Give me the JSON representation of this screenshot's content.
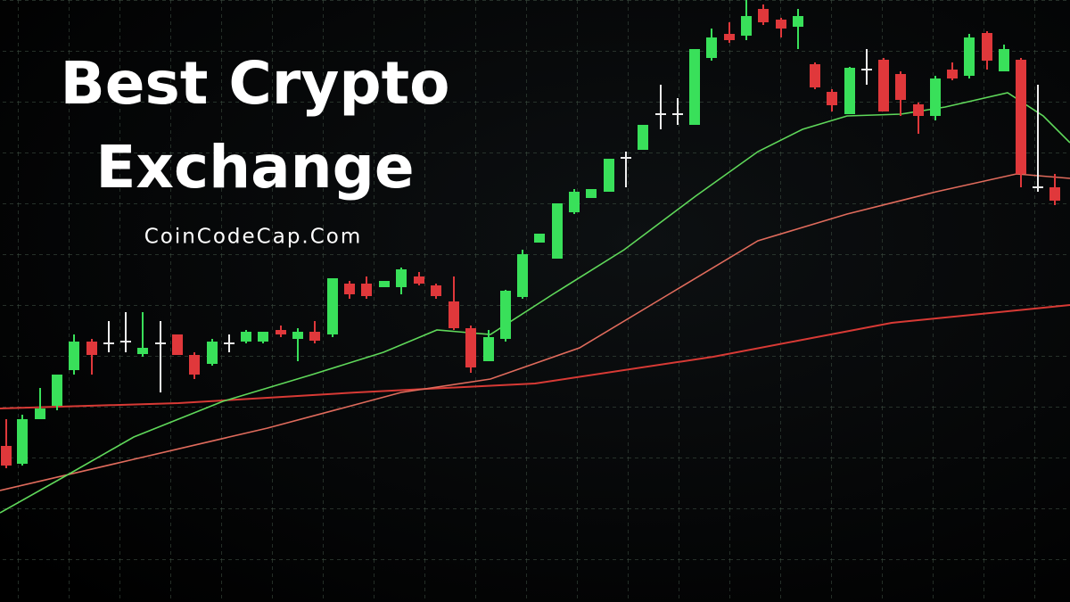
{
  "header": {
    "title_lines": [
      "Best Crypto",
      "Exchange"
    ],
    "site": "CoinCodeCap.Com"
  }
}
